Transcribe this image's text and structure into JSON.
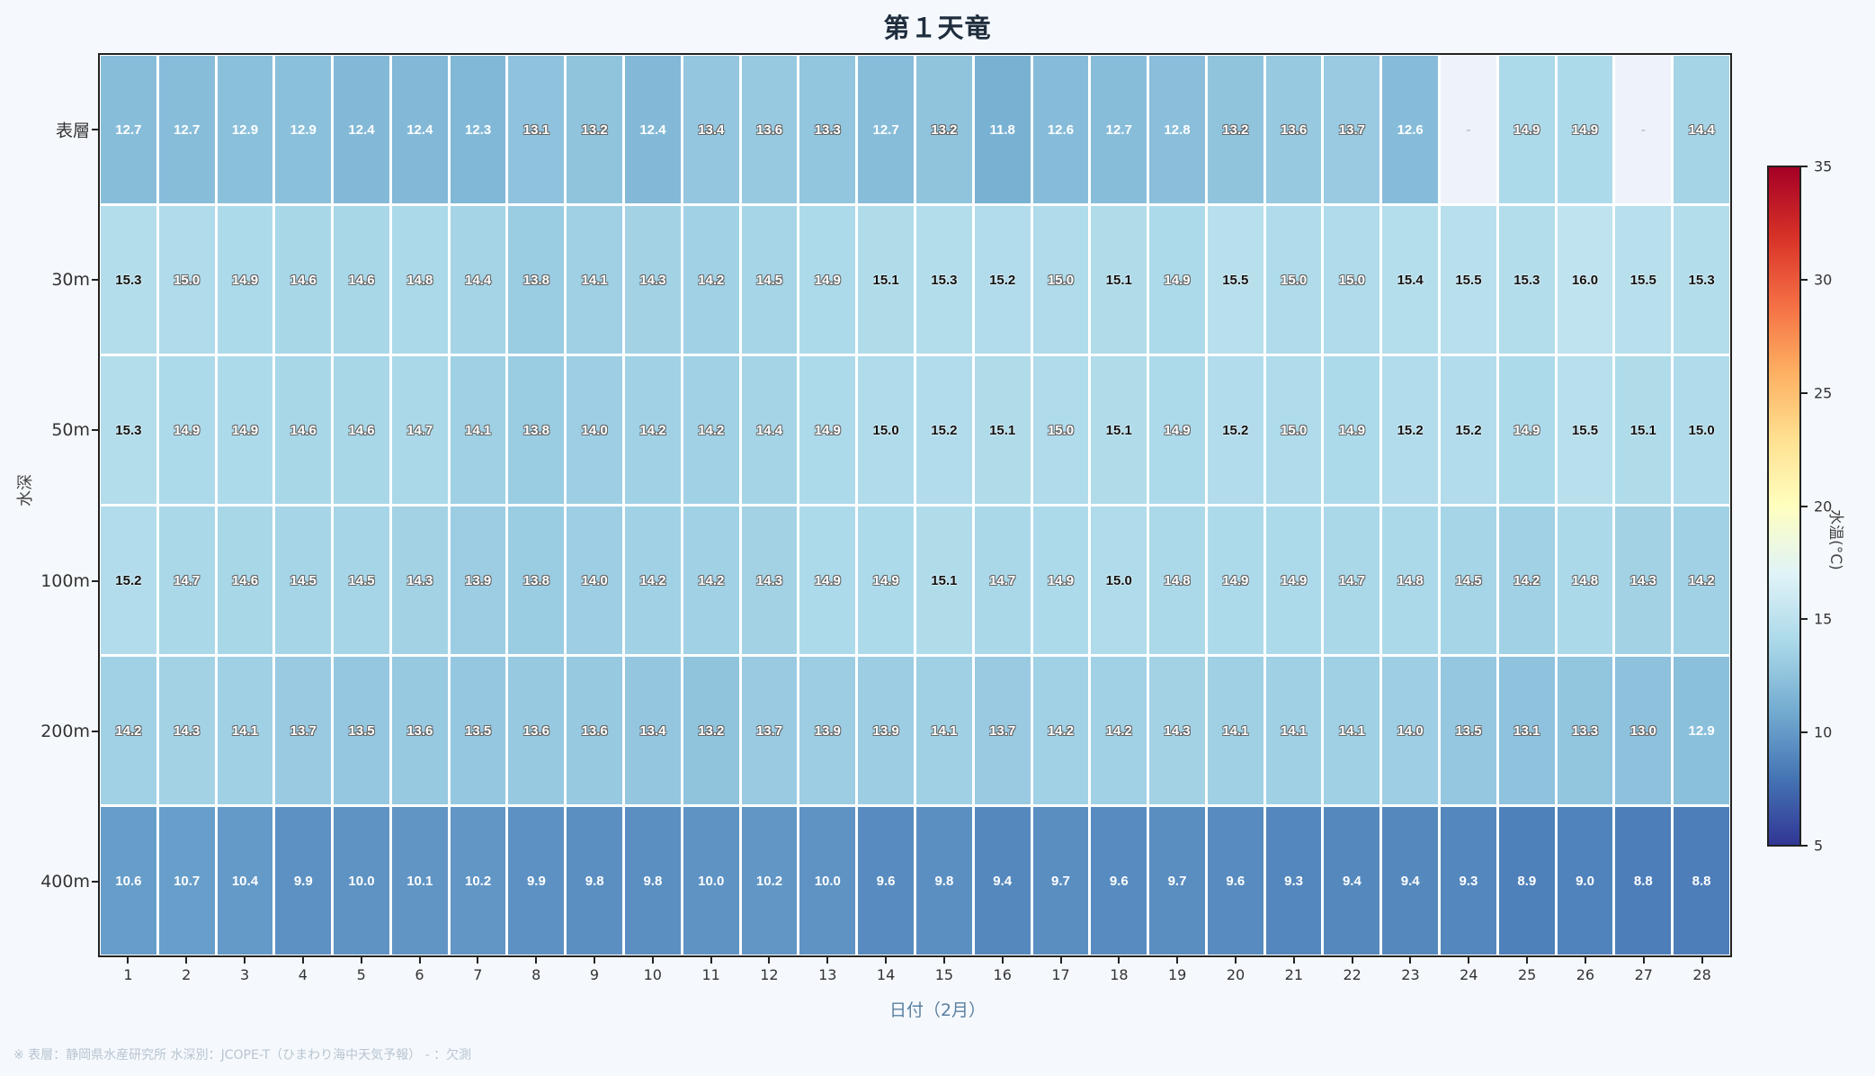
{
  "title": "第１天竜",
  "axes": {
    "ylabel": "水深",
    "xlabel": "日付（2月）",
    "colorbar_label": "水温(°C)"
  },
  "footnote": "※ 表層：静岡県水産研究所  水深別：JCOPE-T（ひまわり海中天気予報）  - ：欠測",
  "colors": {
    "background": "#f5f9fd",
    "missing_cell": "#eef3fb",
    "title": "#1f2d3d",
    "xlabel": "#5a7fa0"
  },
  "chart_data": {
    "type": "heatmap",
    "title": "第１天竜",
    "xlabel": "日付（2月）",
    "ylabel": "水深",
    "colorbar": {
      "label": "水温(°C)",
      "colormap": "RdYlBu_r",
      "range": [
        5,
        35
      ],
      "ticks": [
        5,
        10,
        15,
        20,
        25,
        30,
        35
      ]
    },
    "x": [
      1,
      2,
      3,
      4,
      5,
      6,
      7,
      8,
      9,
      10,
      11,
      12,
      13,
      14,
      15,
      16,
      17,
      18,
      19,
      20,
      21,
      22,
      23,
      24,
      25,
      26,
      27,
      28
    ],
    "y": [
      "表層",
      "30m",
      "50m",
      "100m",
      "200m",
      "400m"
    ],
    "missing_symbol": "-",
    "values": [
      [
        12.7,
        12.7,
        12.9,
        12.9,
        12.4,
        12.4,
        12.3,
        13.1,
        13.2,
        12.4,
        13.4,
        13.6,
        13.3,
        12.7,
        13.2,
        11.8,
        12.6,
        12.7,
        12.8,
        13.2,
        13.6,
        13.7,
        12.6,
        null,
        14.9,
        14.9,
        null,
        14.4
      ],
      [
        15.3,
        15.0,
        14.9,
        14.6,
        14.6,
        14.8,
        14.4,
        13.8,
        14.1,
        14.3,
        14.2,
        14.5,
        14.9,
        15.1,
        15.3,
        15.2,
        15.0,
        15.1,
        14.9,
        15.5,
        15.0,
        15.0,
        15.4,
        15.5,
        15.3,
        16.0,
        15.5,
        15.3
      ],
      [
        15.3,
        14.9,
        14.9,
        14.6,
        14.6,
        14.7,
        14.1,
        13.8,
        14.0,
        14.2,
        14.2,
        14.4,
        14.9,
        15.0,
        15.2,
        15.1,
        15.0,
        15.1,
        14.9,
        15.2,
        15.0,
        14.9,
        15.2,
        15.2,
        14.9,
        15.5,
        15.1,
        15.0
      ],
      [
        15.2,
        14.7,
        14.6,
        14.5,
        14.5,
        14.3,
        13.9,
        13.8,
        14.0,
        14.2,
        14.2,
        14.3,
        14.9,
        14.9,
        15.1,
        14.7,
        14.9,
        15.0,
        14.8,
        14.9,
        14.9,
        14.7,
        14.8,
        14.5,
        14.2,
        14.8,
        14.3,
        14.2
      ],
      [
        14.2,
        14.3,
        14.1,
        13.7,
        13.5,
        13.6,
        13.5,
        13.6,
        13.6,
        13.4,
        13.2,
        13.7,
        13.9,
        13.9,
        14.1,
        13.7,
        14.2,
        14.2,
        14.3,
        14.1,
        14.1,
        14.1,
        14.0,
        13.5,
        13.1,
        13.3,
        13.0,
        12.9
      ],
      [
        10.6,
        10.7,
        10.4,
        9.9,
        10.0,
        10.1,
        10.2,
        9.9,
        9.8,
        9.8,
        10.0,
        10.2,
        10.0,
        9.6,
        9.8,
        9.4,
        9.7,
        9.6,
        9.7,
        9.6,
        9.3,
        9.4,
        9.4,
        9.3,
        8.9,
        9.0,
        8.8,
        8.8
      ]
    ],
    "text_style": {
      "white_below": 12.95,
      "outlined_between": [
        12.95,
        15.0
      ],
      "black_from": 15.0,
      "note": "Some 15.0 cells render outlined"
    },
    "outlined_15_cells": [
      [
        1,
        1
      ],
      [
        1,
        16
      ],
      [
        1,
        20
      ],
      [
        1,
        21
      ],
      [
        2,
        16
      ],
      [
        2,
        20
      ]
    ]
  }
}
